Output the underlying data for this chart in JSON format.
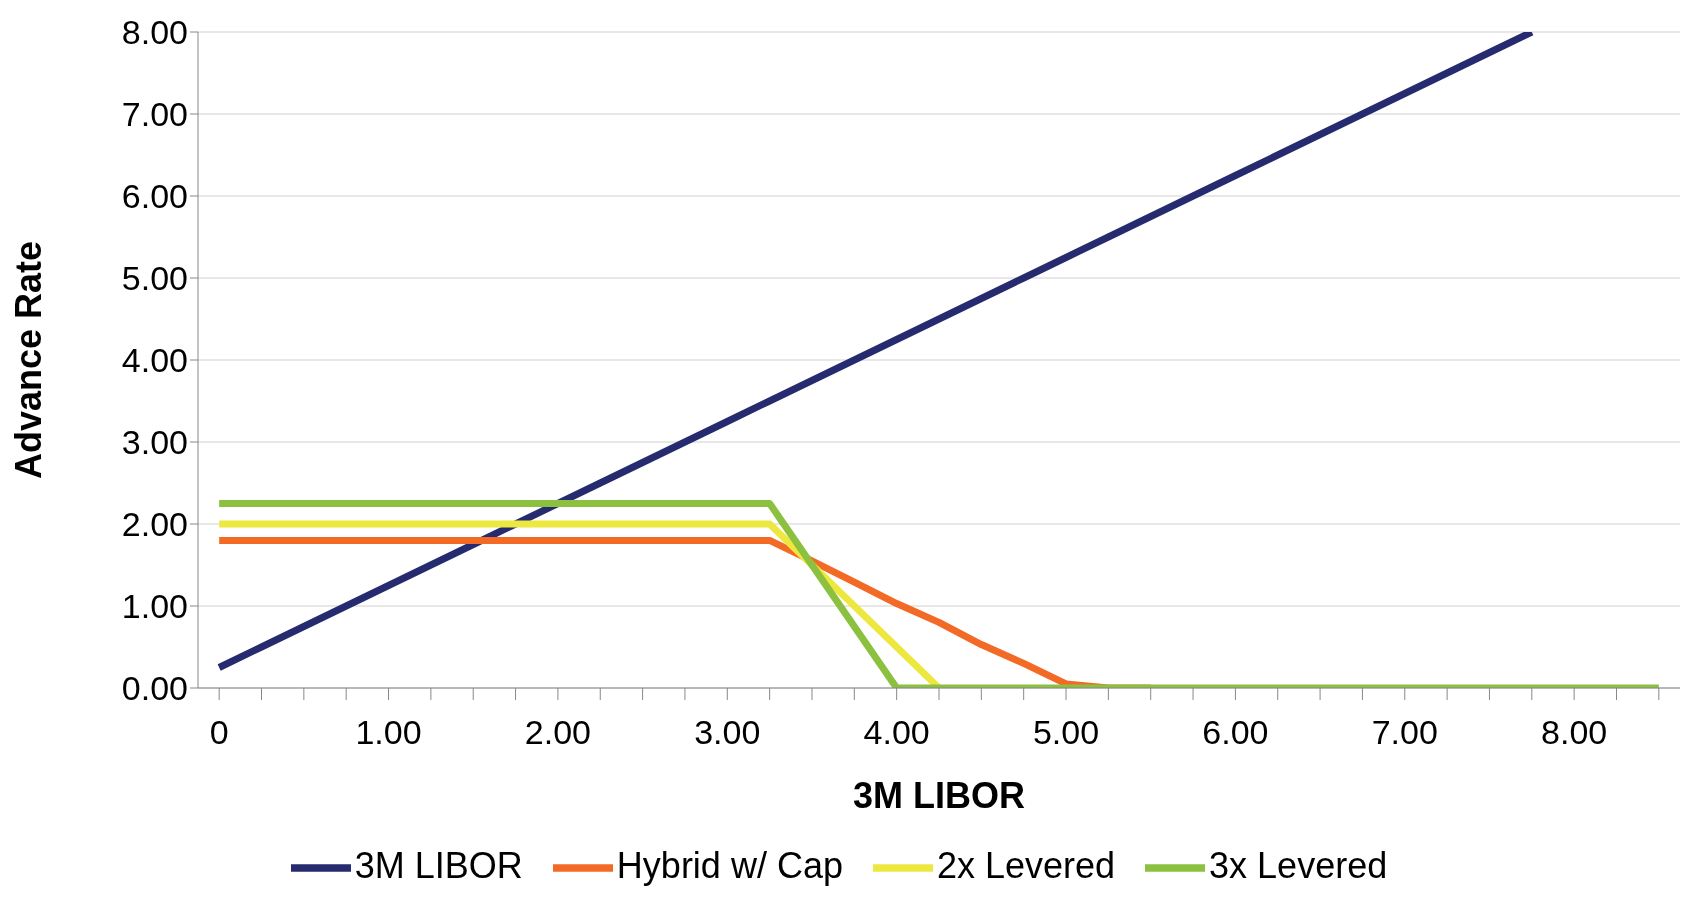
{
  "chart_data": {
    "type": "line",
    "xlabel": "3M LIBOR",
    "ylabel": "Advance Rate",
    "x": [
      0,
      0.25,
      0.5,
      0.75,
      1,
      1.25,
      1.5,
      1.75,
      2,
      2.25,
      2.5,
      2.75,
      3,
      3.25,
      3.5,
      3.75,
      4,
      4.25,
      4.5,
      4.75,
      5,
      5.25,
      5.5,
      5.75,
      6,
      6.25,
      6.5,
      6.75,
      7,
      7.25,
      7.5,
      7.75,
      8,
      8.25,
      8.5
    ],
    "series": [
      {
        "name": "3M LIBOR",
        "color": "#262a6e",
        "values": [
          0.25,
          0.5,
          0.75,
          1,
          1.25,
          1.5,
          1.75,
          2,
          2.25,
          2.5,
          2.75,
          3,
          3.25,
          3.5,
          3.75,
          4,
          4.25,
          4.5,
          4.75,
          5,
          5.25,
          5.5,
          5.75,
          6,
          6.25,
          6.5,
          6.75,
          7,
          7.25,
          7.5,
          7.75,
          8,
          null,
          null,
          null
        ]
      },
      {
        "name": "Hybrid w/ Cap",
        "color": "#f26a26",
        "values": [
          1.8,
          1.8,
          1.8,
          1.8,
          1.8,
          1.8,
          1.8,
          1.8,
          1.8,
          1.8,
          1.8,
          1.8,
          1.8,
          1.8,
          1.55,
          1.29,
          1.03,
          0.8,
          0.53,
          0.3,
          0.05,
          0,
          0,
          null,
          null,
          null,
          null,
          null,
          null,
          null,
          null,
          null,
          null,
          null,
          null
        ]
      },
      {
        "name": "2x Levered",
        "color": "#ede840",
        "values": [
          2,
          2,
          2,
          2,
          2,
          2,
          2,
          2,
          2,
          2,
          2,
          2,
          2,
          2,
          1.5,
          1,
          0.5,
          0,
          null,
          null,
          null,
          null,
          null,
          null,
          null,
          null,
          null,
          null,
          null,
          null,
          null,
          null,
          null,
          null,
          null
        ]
      },
      {
        "name": "3x Levered",
        "color": "#8cc13f",
        "values": [
          2.25,
          2.25,
          2.25,
          2.25,
          2.25,
          2.25,
          2.25,
          2.25,
          2.25,
          2.25,
          2.25,
          2.25,
          2.25,
          2.25,
          1.5,
          0.75,
          0,
          0,
          0,
          0,
          0,
          0,
          0,
          0,
          0,
          0,
          0,
          0,
          0,
          0,
          0,
          0,
          0,
          0,
          0
        ]
      }
    ],
    "xlim": [
      -0.125,
      8.625
    ],
    "xticks": [
      {
        "value": 0,
        "label": "0"
      },
      {
        "value": 0.25,
        "label": null
      },
      {
        "value": 0.5,
        "label": null
      },
      {
        "value": 0.75,
        "label": null
      },
      {
        "value": 1,
        "label": "1.00"
      },
      {
        "value": 1.25,
        "label": null
      },
      {
        "value": 1.5,
        "label": null
      },
      {
        "value": 1.75,
        "label": null
      },
      {
        "value": 2,
        "label": "2.00"
      },
      {
        "value": 2.25,
        "label": null
      },
      {
        "value": 2.5,
        "label": null
      },
      {
        "value": 2.75,
        "label": null
      },
      {
        "value": 3,
        "label": "3.00"
      },
      {
        "value": 3.25,
        "label": null
      },
      {
        "value": 3.5,
        "label": null
      },
      {
        "value": 3.75,
        "label": null
      },
      {
        "value": 4,
        "label": "4.00"
      },
      {
        "value": 4.25,
        "label": null
      },
      {
        "value": 4.5,
        "label": null
      },
      {
        "value": 4.75,
        "label": null
      },
      {
        "value": 5,
        "label": "5.00"
      },
      {
        "value": 5.25,
        "label": null
      },
      {
        "value": 5.5,
        "label": null
      },
      {
        "value": 5.75,
        "label": null
      },
      {
        "value": 6,
        "label": "6.00"
      },
      {
        "value": 6.25,
        "label": null
      },
      {
        "value": 6.5,
        "label": null
      },
      {
        "value": 6.75,
        "label": null
      },
      {
        "value": 7,
        "label": "7.00"
      },
      {
        "value": 7.25,
        "label": null
      },
      {
        "value": 7.5,
        "label": null
      },
      {
        "value": 7.75,
        "label": null
      },
      {
        "value": 8,
        "label": "8.00"
      },
      {
        "value": 8.25,
        "label": null
      },
      {
        "value": 8.5,
        "label": null
      }
    ],
    "ylim": [
      0,
      8
    ],
    "yticks": [
      {
        "value": 0,
        "label": "0.00"
      },
      {
        "value": 1,
        "label": "1.00"
      },
      {
        "value": 2,
        "label": "2.00"
      },
      {
        "value": 3,
        "label": "3.00"
      },
      {
        "value": 4,
        "label": "4.00"
      },
      {
        "value": 5,
        "label": "5.00"
      },
      {
        "value": 6,
        "label": "6.00"
      },
      {
        "value": 7,
        "label": "7.00"
      },
      {
        "value": 8,
        "label": "8.00"
      }
    ],
    "grid": "y",
    "legend": "bottom",
    "marker": "none",
    "line_style": "solid"
  }
}
